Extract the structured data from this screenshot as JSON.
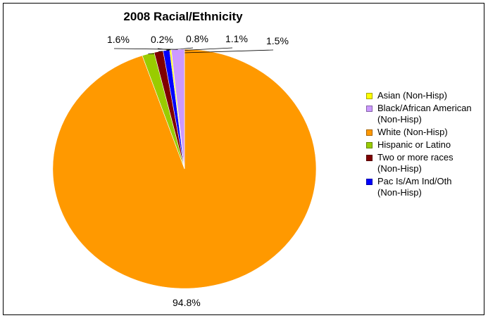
{
  "chart_data": {
    "type": "pie",
    "title": "2008 Racial/Ethnicity",
    "legend_position": "right",
    "slices": [
      {
        "name": "Asian (Non-Hisp)",
        "value": 0.2,
        "label": "0.2%",
        "color": "#ffff00"
      },
      {
        "name": "Black/African American (Non-Hisp)",
        "value": 1.6,
        "label": "1.6%",
        "color": "#cc99ff"
      },
      {
        "name": "White (Non-Hisp)",
        "value": 94.8,
        "label": "94.8%",
        "color": "#ff9900"
      },
      {
        "name": "Hispanic or Latino",
        "value": 1.5,
        "label": "1.5%",
        "color": "#99cc00"
      },
      {
        "name": "Two or more races (Non-Hisp)",
        "value": 1.1,
        "label": "1.1%",
        "color": "#800000"
      },
      {
        "name": "Pac Is/Am Ind/Oth (Non-Hisp)",
        "value": 0.8,
        "label": "0.8%",
        "color": "#0000ff"
      }
    ]
  }
}
